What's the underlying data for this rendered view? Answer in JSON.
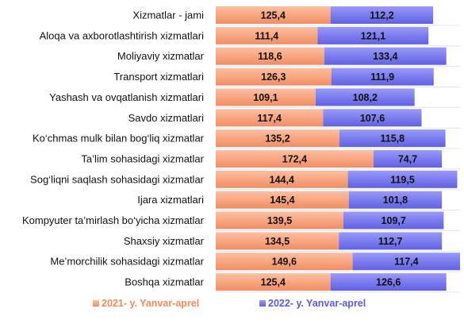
{
  "chart_data": {
    "type": "bar",
    "stacked": true,
    "orientation": "horizontal",
    "categories": [
      "Xizmatlar - jami",
      "Aloqa va axborotlashtirish xizmatlari",
      "Moliyaviy xizmatlar",
      "Transport xizmatlari",
      "Yashash va ovqatlanish xizmatlari",
      "Savdo xizmatlari",
      "Ko‘chmas mulk bilan bog‘liq xizmatlar",
      "Ta’lim sohasidagi xizmatlar",
      "Sog‘liqni saqlash sohasidagi xizmatlar",
      "Ijara xizmatlari",
      "Kompyuter ta’mirlash bo‘yicha xizmatlar",
      "Shaxsiy xizmatlar",
      "Me’morchilik sohasidagi xizmatlar",
      "Boshqa xizmatlar"
    ],
    "series": [
      {
        "name": "2021- y. Yanvar-aprel",
        "color": "#F9A680",
        "values": [
          125.4,
          111.4,
          118.6,
          126.3,
          109.1,
          117.4,
          135.2,
          172.4,
          144.4,
          145.4,
          139.5,
          134.5,
          149.6,
          125.4
        ],
        "labels": [
          "125,4",
          "111,4",
          "118,6",
          "126,3",
          "109,1",
          "117,4",
          "135,2",
          "172,4",
          "144,4",
          "145,4",
          "139,5",
          "134,5",
          "149,6",
          "125,4"
        ]
      },
      {
        "name": "2022- y. Yanvar-aprel",
        "color": "#7C7CF0",
        "values": [
          112.2,
          121.1,
          133.4,
          111.9,
          108.2,
          107.6,
          115.8,
          74.7,
          119.5,
          101.8,
          109.7,
          112.7,
          117.4,
          126.6
        ],
        "labels": [
          "112,2",
          "121,1",
          "133,4",
          "111,9",
          "108,2",
          "107,6",
          "115,8",
          "74,7",
          "119,5",
          "101,8",
          "109,7",
          "112,7",
          "117,4",
          "126,6"
        ]
      }
    ],
    "legend_position": "bottom",
    "grid": false,
    "axis_visible": false
  }
}
